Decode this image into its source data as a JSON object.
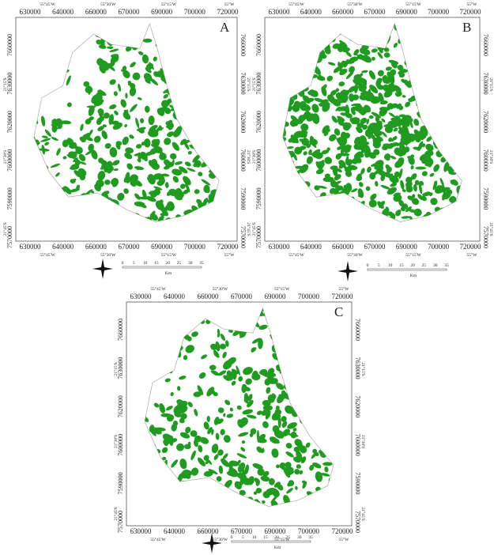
{
  "panels": [
    {
      "label": "A"
    },
    {
      "label": "B"
    },
    {
      "label": "C"
    }
  ],
  "axes": {
    "x_ticks": [
      "630000",
      "640000",
      "660000",
      "670000",
      "690000",
      "700000",
      "720000"
    ],
    "lon_labels": [
      "55°45'W",
      "55°30'W",
      "55°15'W",
      "55°W"
    ],
    "y_ticks": [
      "7660000",
      "7630000",
      "7620000",
      "7600000",
      "7590000",
      "7570000"
    ],
    "lat_labels": [
      "21°15'S",
      "21°30'S",
      "21°45'S"
    ]
  },
  "scale_bar": {
    "ticks": [
      "0",
      "5",
      "10",
      "15",
      "20",
      "25",
      "30",
      "35"
    ],
    "unit": "Km"
  }
}
